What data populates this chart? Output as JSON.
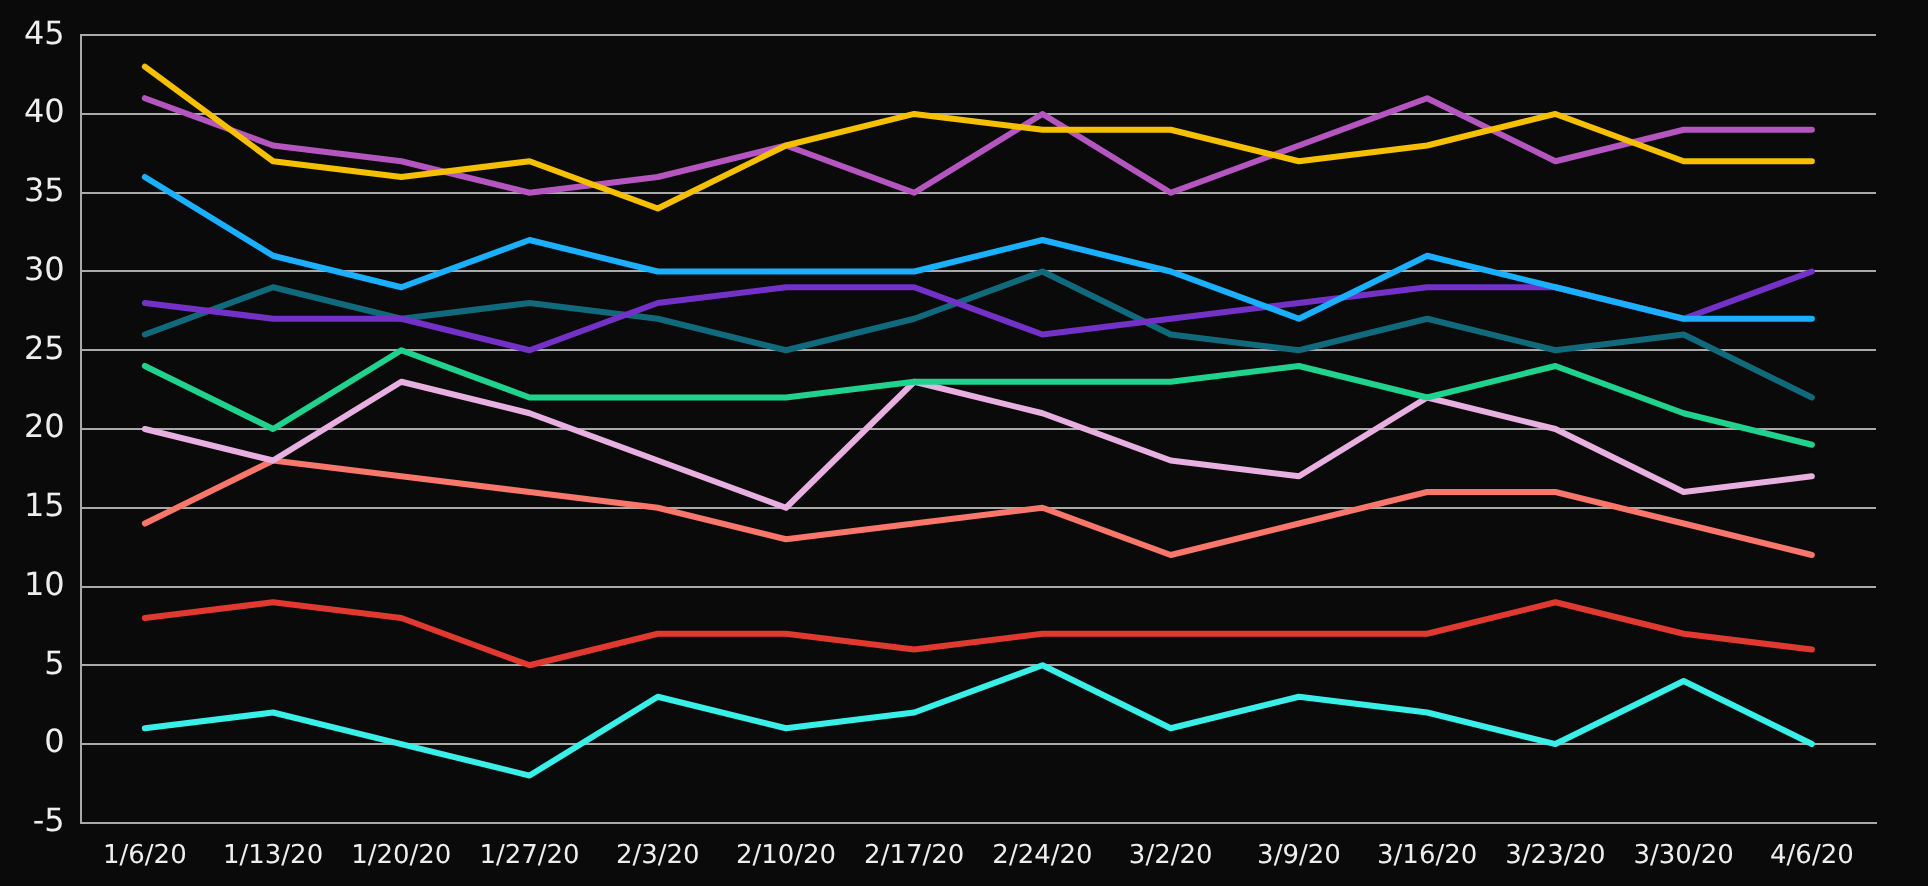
{
  "chart_data": {
    "type": "line",
    "categories": [
      "1/6/20",
      "1/13/20",
      "1/20/20",
      "1/27/20",
      "2/3/20",
      "2/10/20",
      "2/17/20",
      "2/24/20",
      "3/2/20",
      "3/9/20",
      "3/16/20",
      "3/23/20",
      "3/30/20",
      "4/6/20"
    ],
    "series": [
      {
        "color": "#f5c000",
        "values": [
          43,
          37,
          36,
          37,
          34,
          38,
          40,
          39,
          39,
          37,
          38,
          40,
          37,
          37
        ]
      },
      {
        "color": "#b455c0",
        "values": [
          41,
          38,
          37,
          35,
          36,
          38,
          35,
          40,
          35,
          38,
          41,
          37,
          39,
          39
        ]
      },
      {
        "color": "#1ab0ff",
        "values": [
          36,
          31,
          29,
          32,
          30,
          30,
          30,
          32,
          30,
          27,
          31,
          29,
          27,
          27
        ]
      },
      {
        "color": "#7431c8",
        "values": [
          28,
          27,
          27,
          25,
          28,
          29,
          29,
          26,
          27,
          28,
          29,
          29,
          27,
          30
        ]
      },
      {
        "color": "#106a7c",
        "values": [
          26,
          29,
          27,
          28,
          27,
          25,
          27,
          30,
          26,
          25,
          27,
          25,
          26,
          22
        ]
      },
      {
        "color": "#20d28e",
        "values": [
          24,
          20,
          25,
          22,
          22,
          22,
          23,
          23,
          23,
          24,
          22,
          24,
          21,
          19
        ]
      },
      {
        "color": "#e8b0e0",
        "values": [
          20,
          18,
          23,
          21,
          18,
          15,
          23,
          21,
          18,
          17,
          22,
          20,
          16,
          17
        ]
      },
      {
        "color": "#f8766a",
        "values": [
          14,
          18,
          17,
          16,
          15,
          13,
          14,
          15,
          12,
          14,
          16,
          16,
          14,
          12
        ]
      },
      {
        "color": "#e03a30",
        "values": [
          8,
          9,
          8,
          5,
          7,
          7,
          6,
          7,
          7,
          7,
          7,
          9,
          7,
          6
        ]
      },
      {
        "color": "#38f0e8",
        "values": [
          1,
          2,
          0,
          -2,
          3,
          1,
          2,
          5,
          1,
          3,
          2,
          0,
          4,
          0
        ]
      }
    ],
    "ylim": [
      -5,
      45
    ],
    "yticks": [
      -5,
      0,
      5,
      10,
      15,
      20,
      25,
      30,
      35,
      40,
      45
    ],
    "grid": "y",
    "legend": false,
    "marker": "none",
    "line_style": "solid"
  }
}
